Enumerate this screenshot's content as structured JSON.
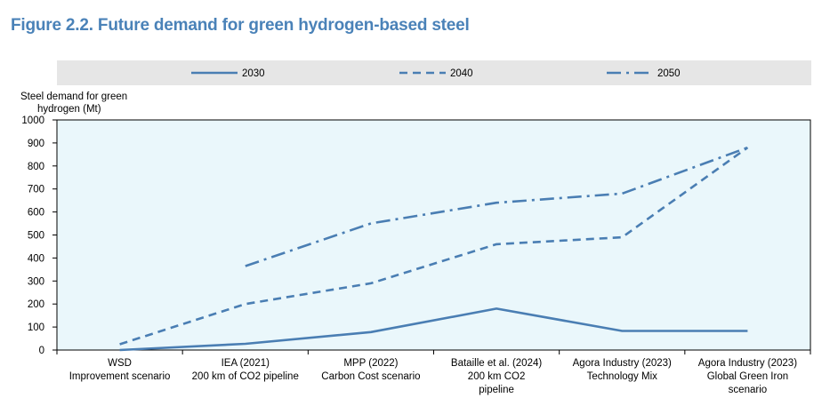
{
  "figure_title": "Figure 2.2. Future demand for green hydrogen-based steel",
  "chart_data": {
    "type": "line",
    "title": "Figure 2.2. Future demand for green hydrogen-based steel",
    "ylabel": "Steel demand for green hydrogen (Mt)",
    "ylabel_lines": [
      "Steel demand for green",
      "hydrogen (Mt)"
    ],
    "xlabel": "",
    "ylim": [
      0,
      1000
    ],
    "yticks": [
      0,
      100,
      200,
      300,
      400,
      500,
      600,
      700,
      800,
      900,
      1000
    ],
    "grid": false,
    "legend_position": "top",
    "line_color": "#4a7eb3",
    "categories": [
      [
        "WSD",
        "Improvement scenario"
      ],
      [
        "IEA (2021)",
        "200 km of CO2 pipeline"
      ],
      [
        "MPP (2022)",
        "Carbon Cost scenario"
      ],
      [
        "Bataille et al. (2024)",
        "200 km CO2",
        "pipeline"
      ],
      [
        "Agora Industry (2023)",
        "Technology Mix"
      ],
      [
        "Agora Industry (2023)",
        "Global Green Iron",
        "scenario"
      ]
    ],
    "series": [
      {
        "name": "2030",
        "style": "solid",
        "values": [
          0,
          27,
          78,
          180,
          83,
          83
        ]
      },
      {
        "name": "2040",
        "style": "dashed",
        "values": [
          25,
          200,
          290,
          460,
          490,
          880
        ]
      },
      {
        "name": "2050",
        "style": "dashdot",
        "values": [
          null,
          365,
          550,
          640,
          680,
          880
        ]
      }
    ]
  }
}
